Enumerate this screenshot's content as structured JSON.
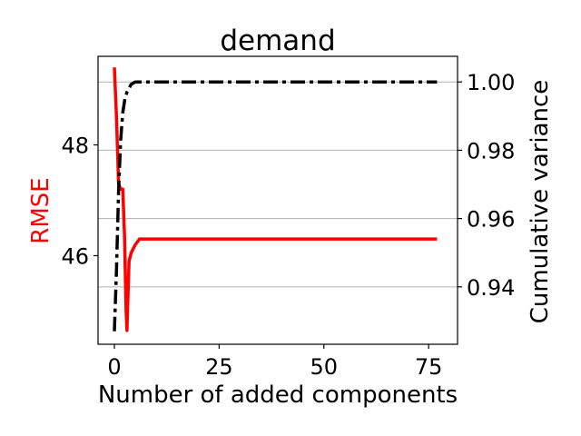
{
  "chart_data": {
    "type": "line",
    "title": "demand",
    "xlabel": "Number of added components",
    "ylabel_left": "RMSE",
    "ylabel_right": "Cumulative variance",
    "xlim": [
      -3.9,
      81.9
    ],
    "xticks": [
      0,
      25,
      50,
      75
    ],
    "ylim_left": [
      44.4,
      49.6
    ],
    "yticks_left": [
      46,
      48
    ],
    "ylim_right": [
      0.9232,
      1.0075
    ],
    "yticks_right": [
      "0.94",
      "0.96",
      "0.98",
      "1.00"
    ],
    "grid": "horizontal lines at right-axis ticks",
    "series": [
      {
        "axis": "left",
        "color": "#ff0000",
        "style": "solid",
        "x": [
          0,
          0.5,
          1,
          1.5,
          2,
          2.4,
          2.8,
          3,
          3.5,
          4,
          5,
          6,
          8,
          10,
          20,
          30,
          40,
          50,
          60,
          70,
          77
        ],
        "y": [
          49.4,
          48.5,
          47.3,
          47.2,
          47.2,
          46.4,
          45.0,
          44.65,
          45.9,
          46.05,
          46.2,
          46.3,
          46.3,
          46.3,
          46.3,
          46.3,
          46.3,
          46.3,
          46.3,
          46.3,
          46.3
        ]
      },
      {
        "axis": "right",
        "color": "#000000",
        "style": "dashdot",
        "x": [
          0,
          0.5,
          1,
          1.5,
          2,
          2.5,
          3,
          4,
          5,
          6,
          8,
          10,
          20,
          30,
          40,
          50,
          60,
          70,
          77
        ],
        "y": [
          0.927,
          0.945,
          0.968,
          0.983,
          0.991,
          0.995,
          0.997,
          0.9993,
          1.0,
          1.0,
          1.0,
          1.0,
          1.0,
          1.0,
          1.0,
          1.0,
          1.0,
          1.0,
          1.0
        ]
      }
    ]
  },
  "colors": {
    "rmse_label": "#ff0000",
    "grid": "#b0b0b0",
    "axes": "#000000"
  }
}
